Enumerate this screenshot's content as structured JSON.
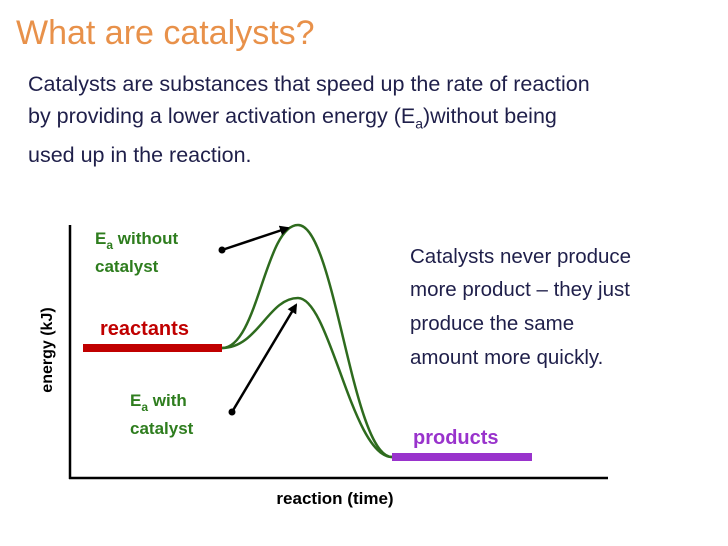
{
  "title": "What are catalysts?",
  "intro": {
    "lines": [
      {
        "text": "Catalysts are substances that speed up the rate of reaction"
      },
      {
        "before": "by providing a lower activation energy (E",
        "subscript": "a",
        "after": ")without being"
      },
      {
        "text": "used up in the reaction."
      }
    ]
  },
  "diagram": {
    "y_axis_label": "energy (kJ)",
    "x_axis_label": "reaction (time)",
    "reactants_label": "reactants",
    "products_label": "products",
    "without_catalyst_label": {
      "symbol": "E",
      "subscript": "a",
      "lines": [
        " without",
        "catalyst"
      ]
    },
    "with_catalyst_label": {
      "symbol": "E",
      "subscript": "a",
      "lines": [
        " with",
        "catalyst"
      ]
    }
  },
  "note": {
    "lines": [
      "Catalysts never produce",
      "more product – they just",
      "produce the same",
      "amount more quickly."
    ]
  }
}
